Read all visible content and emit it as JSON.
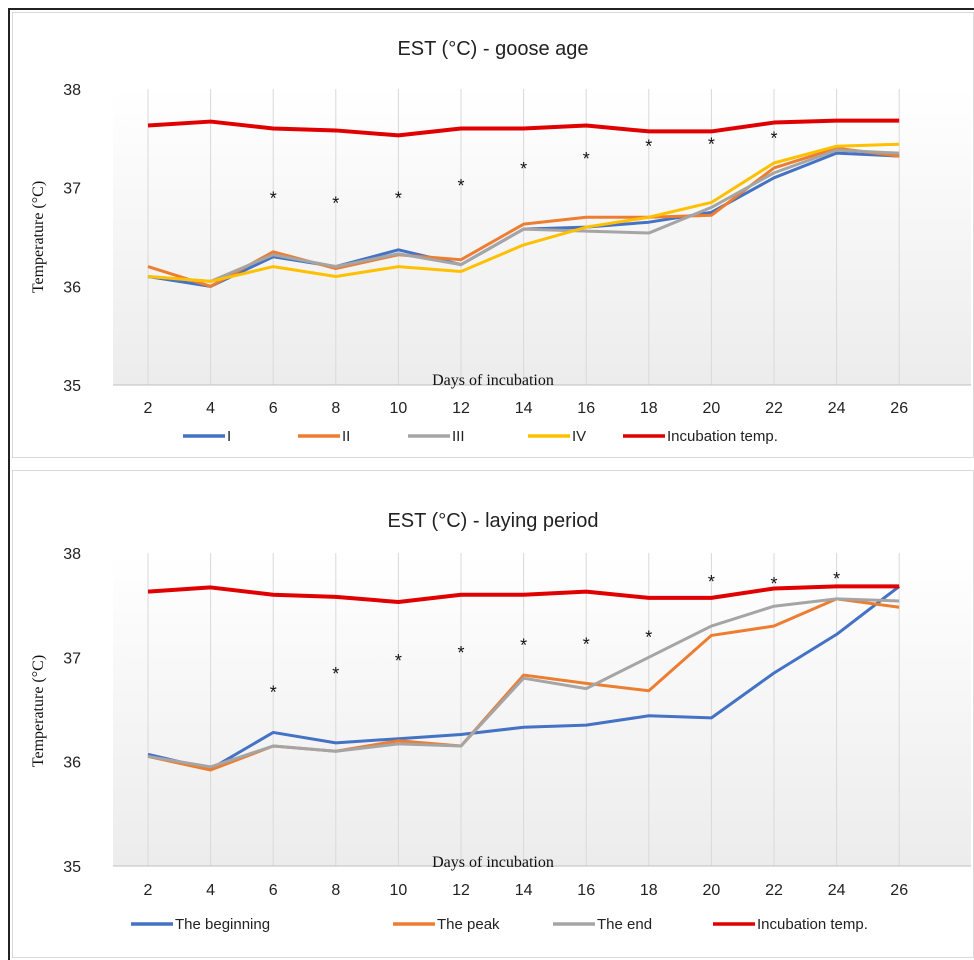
{
  "chart_data": [
    {
      "type": "line",
      "title": "EST (°C) - goose age",
      "xlabel": "Days of incubation",
      "ylabel": "Temperature (°C)",
      "ylim": [
        35,
        38
      ],
      "yticks": [
        "35",
        "36",
        "37",
        "38"
      ],
      "categories": [
        "2",
        "4",
        "6",
        "8",
        "10",
        "12",
        "14",
        "16",
        "18",
        "20",
        "22",
        "24",
        "26"
      ],
      "grid": "vertical",
      "legend_position": "bottom",
      "series": [
        {
          "name": "I",
          "color": "#4472c4",
          "values": [
            36.1,
            36.0,
            36.3,
            36.2,
            36.37,
            36.22,
            36.58,
            36.6,
            36.65,
            36.75,
            37.1,
            37.35,
            37.32
          ]
        },
        {
          "name": "II",
          "color": "#ed7d31",
          "values": [
            36.2,
            36.0,
            36.35,
            36.18,
            36.32,
            36.27,
            36.63,
            36.7,
            36.7,
            36.72,
            37.2,
            37.4,
            37.32
          ]
        },
        {
          "name": "III",
          "color": "#a5a5a5",
          "values": [
            36.1,
            36.05,
            36.32,
            36.2,
            36.33,
            36.22,
            36.58,
            36.56,
            36.54,
            36.8,
            37.15,
            37.38,
            37.35
          ]
        },
        {
          "name": "IV",
          "color": "#ffc000",
          "values": [
            36.1,
            36.05,
            36.2,
            36.1,
            36.2,
            36.15,
            36.42,
            36.6,
            36.7,
            36.85,
            37.25,
            37.42,
            37.44
          ]
        },
        {
          "name": "Incubation temp.",
          "color": "#e00000",
          "values": [
            37.63,
            37.67,
            37.6,
            37.58,
            37.53,
            37.6,
            37.6,
            37.63,
            37.57,
            37.57,
            37.66,
            37.68,
            37.68
          ]
        }
      ],
      "significance": {
        "marker": "*",
        "days": [
          "6",
          "8",
          "10",
          "12",
          "14",
          "16",
          "18",
          "20",
          "22"
        ],
        "y": [
          36.95,
          36.9,
          36.95,
          37.08,
          37.25,
          37.35,
          37.48,
          37.5,
          37.56
        ]
      }
    },
    {
      "type": "line",
      "title": "EST (°C) - laying period",
      "xlabel": "Days of incubation",
      "ylabel": "Temperature (°C)",
      "ylim": [
        35,
        38
      ],
      "yticks": [
        "35",
        "36",
        "37",
        "38"
      ],
      "categories": [
        "2",
        "4",
        "6",
        "8",
        "10",
        "12",
        "14",
        "16",
        "18",
        "20",
        "22",
        "24",
        "26"
      ],
      "grid": "vertical",
      "legend_position": "bottom",
      "series": [
        {
          "name": "The beginning",
          "color": "#4472c4",
          "values": [
            36.07,
            35.93,
            36.28,
            36.18,
            36.22,
            36.26,
            36.33,
            36.35,
            36.44,
            36.42,
            36.85,
            37.22,
            37.68
          ]
        },
        {
          "name": "The peak",
          "color": "#ed7d31",
          "values": [
            36.05,
            35.92,
            36.15,
            36.1,
            36.2,
            36.15,
            36.83,
            36.75,
            36.68,
            37.21,
            37.3,
            37.56,
            37.48
          ]
        },
        {
          "name": "The end",
          "color": "#a5a5a5",
          "values": [
            36.05,
            35.95,
            36.15,
            36.1,
            36.17,
            36.15,
            36.8,
            36.7,
            37.0,
            37.3,
            37.49,
            37.56,
            37.54
          ]
        },
        {
          "name": "Incubation temp.",
          "color": "#e00000",
          "values": [
            37.63,
            37.67,
            37.6,
            37.58,
            37.53,
            37.6,
            37.6,
            37.63,
            37.57,
            37.57,
            37.66,
            37.68,
            37.68
          ]
        }
      ],
      "significance": {
        "marker": "*",
        "days": [
          "6",
          "8",
          "10",
          "12",
          "14",
          "16",
          "18",
          "20",
          "22",
          "24"
        ],
        "y": [
          36.72,
          36.9,
          37.02,
          37.1,
          37.17,
          37.18,
          37.25,
          37.78,
          37.76,
          37.81
        ]
      }
    }
  ]
}
